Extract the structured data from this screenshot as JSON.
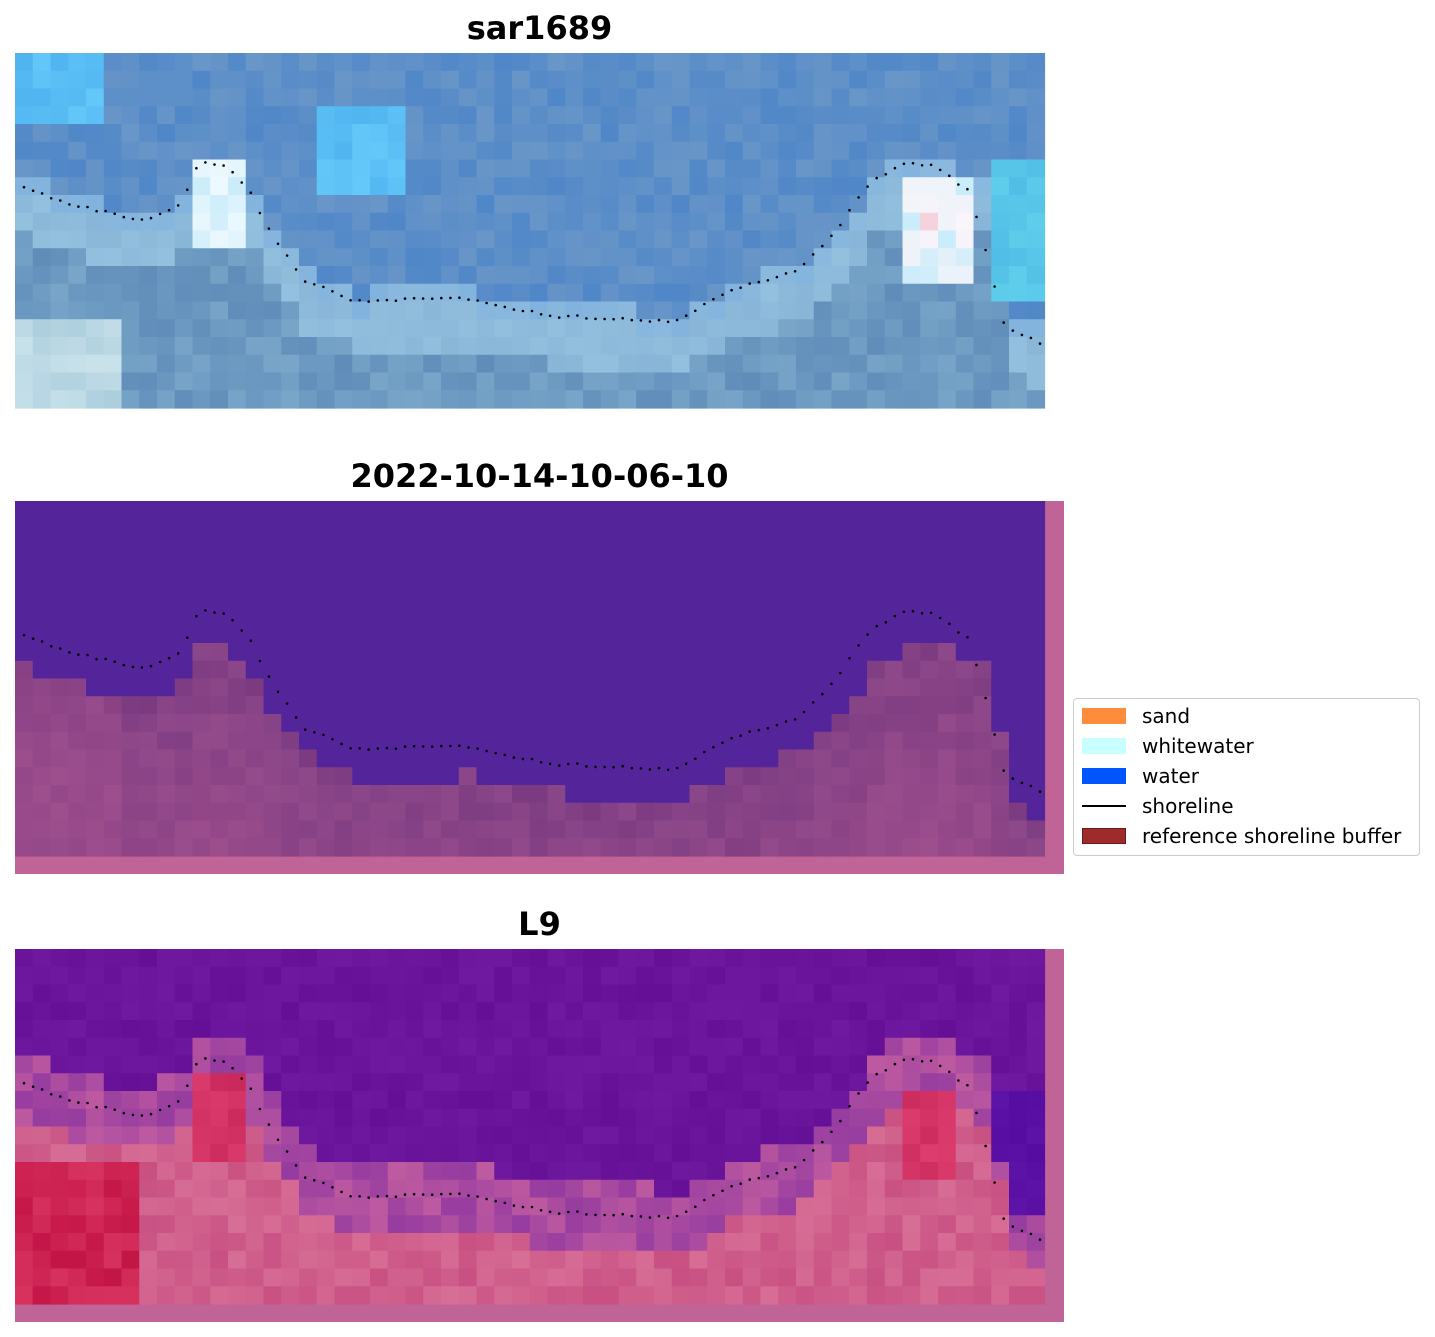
{
  "panels": [
    {
      "id": "rgb",
      "title": "sar1689",
      "kind": "rgb"
    },
    {
      "id": "classified",
      "title": "2022-10-14-10-06-10",
      "kind": "classified"
    },
    {
      "id": "index",
      "title": "L9",
      "kind": "index"
    }
  ],
  "legend": {
    "items": [
      {
        "label": "sand",
        "color": "#ff8c3a",
        "type": "patch"
      },
      {
        "label": "whitewater",
        "color": "#c8ffff",
        "type": "patch"
      },
      {
        "label": "water",
        "color": "#0055ff",
        "type": "patch"
      },
      {
        "label": "shoreline",
        "color": "#000000",
        "type": "line"
      },
      {
        "label": "reference shoreline buffer",
        "color": "#9e2a2b",
        "type": "patch"
      }
    ]
  },
  "colors": {
    "water_class": "#54249b",
    "land_class": "#7e3e82",
    "buffer_edge": "#c06497",
    "shoreline_points": "#000000"
  },
  "icons": [
    "shoreline-dots"
  ]
}
